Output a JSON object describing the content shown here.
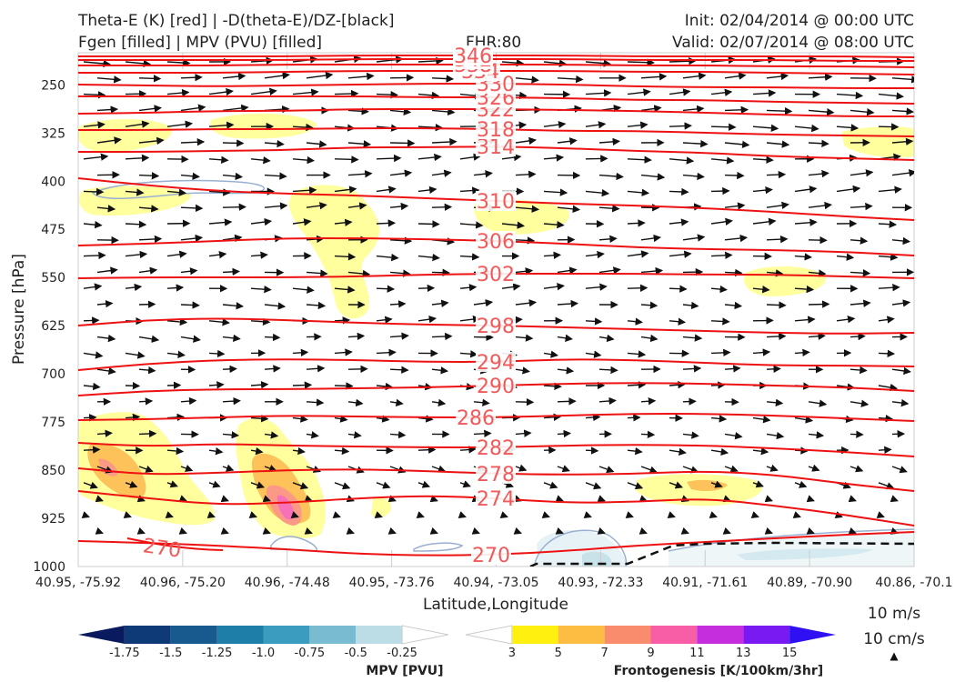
{
  "header": {
    "title_line1": "Theta-E (K) [red] | -D(theta-E)/DZ-[black]",
    "title_line2": "Fgen [filled] | MPV (PVU) [filled]",
    "fhr": "FHR:80",
    "init": "Init: 02/04/2014 @ 00:00 UTC",
    "valid": "Valid: 02/07/2014 @ 08:00 UTC"
  },
  "chart_data": {
    "type": "cross-section",
    "xlabel": "Latitude,Longitude",
    "ylabel": "Pressure [hPa]",
    "x_ticks": [
      "40.95, -75.92",
      "40.96, -75.20",
      "40.96, -74.48",
      "40.95, -73.76",
      "40.94, -73.05",
      "40.93, -72.33",
      "40.91, -71.61",
      "40.89, -70.90",
      "40.86, -70.1"
    ],
    "y_ticks": [
      250,
      325,
      400,
      475,
      550,
      625,
      700,
      775,
      850,
      925,
      1000
    ],
    "ylim": [
      1000,
      200
    ],
    "theta_e_contours": [
      {
        "label": "270",
        "y": [
          595,
          597,
          600,
          604,
          609,
          611,
          610,
          606,
          600,
          596,
          592,
          588,
          585
        ]
      },
      {
        "label": "274",
        "y": [
          540,
          548,
          555,
          553,
          548,
          545,
          548,
          553,
          552,
          548,
          556,
          566,
          578
        ]
      },
      {
        "label": "278",
        "y": [
          515,
          522,
          520,
          517,
          516,
          518,
          521,
          522,
          521,
          518,
          522,
          532,
          540
        ]
      },
      {
        "label": "282",
        "y": [
          487,
          491,
          488,
          490,
          491,
          492,
          492,
          490,
          489,
          490,
          493,
          497,
          502
        ]
      },
      {
        "label": "286",
        "y": [
          462,
          461,
          459,
          457,
          458,
          459,
          459,
          457,
          455,
          455,
          457,
          460,
          463
        ]
      },
      {
        "label": "290",
        "y": [
          435,
          430,
          428,
          428,
          427,
          426,
          424,
          422,
          421,
          422,
          424,
          426,
          430
        ]
      },
      {
        "label": "294",
        "y": [
          407,
          400,
          396,
          395,
          396,
          398,
          398,
          395,
          396,
          399,
          402,
          402,
          403
        ]
      },
      {
        "label": "298",
        "y": [
          358,
          352,
          350,
          352,
          355,
          357,
          358,
          360,
          362,
          364,
          366,
          367,
          366
        ]
      },
      {
        "label": "302",
        "y": [
          306,
          305,
          305,
          305,
          304,
          302,
          301,
          301,
          301,
          302,
          302,
          304,
          306
        ]
      },
      {
        "label": "306",
        "y": [
          270,
          268,
          265,
          262,
          262,
          263,
          265,
          268,
          272,
          274,
          275,
          277,
          281
        ]
      },
      {
        "label": "310",
        "y": [
          196,
          204,
          210,
          213,
          215,
          218,
          221,
          224,
          226,
          229,
          233,
          238,
          242
        ]
      },
      {
        "label": "314",
        "y": [
          167,
          167,
          166,
          165,
          162,
          162,
          161,
          163,
          166,
          168,
          172,
          174,
          176
        ]
      },
      {
        "label": "318",
        "y": [
          143,
          143,
          142,
          142,
          141,
          141,
          142,
          144,
          144,
          146,
          148,
          149,
          150
        ]
      },
      {
        "label": "322",
        "y": [
          125,
          124,
          122,
          122,
          120,
          120,
          120,
          121,
          122,
          124,
          126,
          128,
          128
        ]
      },
      {
        "label": "326",
        "y": [
          106,
          106,
          106,
          106,
          106,
          107,
          107,
          108,
          110,
          110,
          112,
          113,
          114
        ]
      },
      {
        "label": "330",
        "y": [
          93,
          94,
          95,
          94,
          93,
          92,
          92,
          93,
          95,
          96,
          96,
          97,
          97
        ]
      },
      {
        "label": "334",
        "y": [
          80,
          80,
          80,
          79,
          78,
          78,
          78,
          78,
          79,
          79,
          80,
          81,
          82
        ]
      },
      {
        "label": "338",
        "y": [
          72,
          72,
          72,
          71,
          71,
          71,
          71,
          71,
          72,
          72,
          73,
          73,
          74
        ]
      },
      {
        "label": "342",
        "y": [
          66,
          66,
          66,
          66,
          65,
          65,
          65,
          65,
          66,
          66,
          66,
          67,
          67
        ]
      },
      {
        "label": "346",
        "y": [
          62,
          62,
          62,
          62,
          61,
          61,
          61,
          61,
          62,
          62,
          62,
          62,
          63
        ]
      }
    ],
    "mpv_colorbar": {
      "title": "MPV [PVU]",
      "ticks": [
        "-1.75",
        "-1.5",
        "-1.25",
        "-1.0",
        "-0.75",
        "-0.5",
        "-0.25"
      ],
      "colors": [
        "#0a1a5e",
        "#0f3a78",
        "#185a8e",
        "#1e7ea8",
        "#3c9cc0",
        "#79bcd2",
        "#bcdde6",
        "#ffffff"
      ]
    },
    "fgen_colorbar": {
      "title": "Frontogenesis [K/100km/3hr]",
      "ticks": [
        "3",
        "5",
        "7",
        "9",
        "11",
        "13",
        "15"
      ],
      "colors": [
        "#ffffff",
        "#fff010",
        "#fdbc42",
        "#fa8c6e",
        "#f85ea6",
        "#c42edc",
        "#7a1af2",
        "#2e10f2"
      ]
    },
    "reference_vector": {
      "horizontal": "10 m/s",
      "vertical": "10 cm/s"
    }
  }
}
